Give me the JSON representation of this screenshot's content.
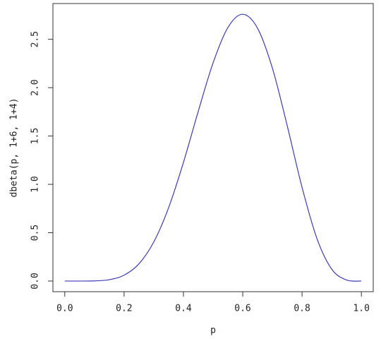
{
  "chart_data": {
    "type": "line",
    "xlabel": "p",
    "ylabel": "dbeta(p, 1+6, 1+4)",
    "x": [
      0,
      0.05,
      0.1,
      0.15,
      0.2,
      0.25,
      0.3,
      0.35,
      0.4,
      0.45,
      0.5,
      0.55,
      0.6,
      0.65,
      0.7,
      0.75,
      0.8,
      0.85,
      0.9,
      0.95,
      1
    ],
    "values": [
      0,
      3e-05,
      0.0015,
      0.0137,
      0.0606,
      0.178,
      0.404,
      0.758,
      1.226,
      1.755,
      2.256,
      2.622,
      2.759,
      2.614,
      2.201,
      1.606,
      0.969,
      0.441,
      0.123,
      0.0106,
      0
    ],
    "color": "#3c3cb4",
    "xlim": [
      -0.04,
      1.04
    ],
    "ylim": [
      -0.11,
      2.87
    ],
    "xticks": [
      {
        "value": 0,
        "label": "0.0"
      },
      0.2,
      0.4,
      0.6,
      0.8,
      {
        "value": 1,
        "label": "1.0"
      }
    ],
    "yticks": [
      {
        "value": 0,
        "label": "0.0"
      },
      0.5,
      {
        "value": 1,
        "label": "1.0"
      },
      1.5,
      {
        "value": 2,
        "label": "2.0"
      },
      2.5
    ]
  }
}
